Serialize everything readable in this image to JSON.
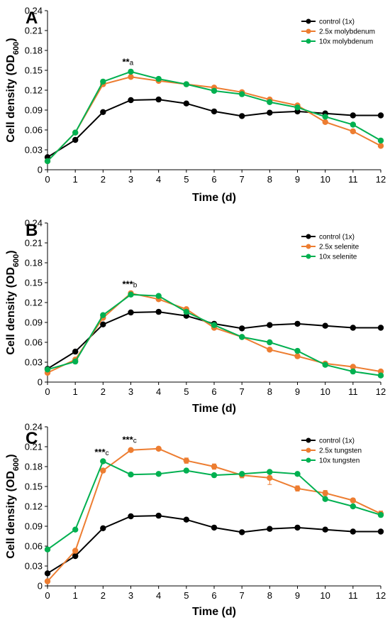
{
  "chart_data": [
    {
      "type": "line",
      "panel_label": "A",
      "xlabel": "Time (d)",
      "ylabel_main": "Cell density (OD",
      "ylabel_sub": "600",
      "ylabel_close": ")",
      "x": [
        0,
        1,
        2,
        3,
        4,
        5,
        6,
        7,
        8,
        9,
        10,
        11,
        12
      ],
      "xlim": [
        0,
        12
      ],
      "ylim": [
        0,
        0.24
      ],
      "yticks": [
        "0",
        "0.03",
        "0.06",
        "0.09",
        "0.12",
        "0.15",
        "0.18",
        "0.21",
        "0.24"
      ],
      "grid": false,
      "legend_position": "top-right",
      "series": [
        {
          "name": "control (1x)",
          "color": "#000000",
          "values": [
            0.019,
            0.045,
            0.087,
            0.105,
            0.106,
            0.1,
            0.088,
            0.081,
            0.086,
            0.088,
            0.085,
            0.082,
            0.082
          ],
          "errors": []
        },
        {
          "name": "2.5x molybdenum",
          "color": "#ED7D31",
          "values": [
            0.013,
            0.056,
            0.129,
            0.14,
            0.134,
            0.129,
            0.124,
            0.117,
            0.106,
            0.097,
            0.072,
            0.058,
            0.036
          ],
          "errors": []
        },
        {
          "name": "10x molybdenum",
          "color": "#00B050",
          "values": [
            0.013,
            0.056,
            0.133,
            0.148,
            0.137,
            0.129,
            0.119,
            0.114,
            0.102,
            0.094,
            0.08,
            0.068,
            0.044
          ],
          "errors": []
        }
      ],
      "annotations": [
        {
          "stars": "**",
          "letter": "a",
          "x": 3,
          "y": 0.158
        }
      ]
    },
    {
      "type": "line",
      "panel_label": "B",
      "xlabel": "Time (d)",
      "ylabel_main": "Cell density (OD",
      "ylabel_sub": "600",
      "ylabel_close": ")",
      "x": [
        0,
        1,
        2,
        3,
        4,
        5,
        6,
        7,
        8,
        9,
        10,
        11,
        12
      ],
      "xlim": [
        0,
        12
      ],
      "ylim": [
        0,
        0.24
      ],
      "yticks": [
        "0",
        "0.03",
        "0.06",
        "0.09",
        "0.12",
        "0.15",
        "0.18",
        "0.21",
        "0.24"
      ],
      "grid": false,
      "legend_position": "top-right",
      "series": [
        {
          "name": "control (1x)",
          "color": "#000000",
          "values": [
            0.02,
            0.046,
            0.087,
            0.105,
            0.106,
            0.1,
            0.088,
            0.081,
            0.086,
            0.088,
            0.085,
            0.082,
            0.082
          ],
          "errors": []
        },
        {
          "name": "2.5x selenite",
          "color": "#ED7D31",
          "values": [
            0.014,
            0.034,
            0.097,
            0.134,
            0.125,
            0.11,
            0.082,
            0.068,
            0.049,
            0.039,
            0.028,
            0.023,
            0.016
          ],
          "errors": []
        },
        {
          "name": "10x selenite",
          "color": "#00B050",
          "values": [
            0.019,
            0.031,
            0.101,
            0.132,
            0.13,
            0.106,
            0.086,
            0.068,
            0.06,
            0.047,
            0.026,
            0.016,
            0.01
          ],
          "errors": []
        }
      ],
      "annotations": [
        {
          "stars": "***",
          "letter": "b",
          "x": 3,
          "y": 0.143
        }
      ]
    },
    {
      "type": "line",
      "panel_label": "C",
      "xlabel": "Time (d)",
      "ylabel_main": "Cell density (OD",
      "ylabel_sub": "600",
      "ylabel_close": ")",
      "x": [
        0,
        1,
        2,
        3,
        4,
        5,
        6,
        7,
        8,
        9,
        10,
        11,
        12
      ],
      "xlim": [
        0,
        12
      ],
      "ylim": [
        0,
        0.24
      ],
      "yticks": [
        "0",
        "0.03",
        "0.06",
        "0.09",
        "0.12",
        "0.15",
        "0.18",
        "0.21",
        "0.24"
      ],
      "grid": false,
      "legend_position": "top-right",
      "series": [
        {
          "name": "control (1x)",
          "color": "#000000",
          "values": [
            0.019,
            0.045,
            0.087,
            0.105,
            0.106,
            0.1,
            0.088,
            0.081,
            0.086,
            0.088,
            0.085,
            0.082,
            0.082
          ],
          "errors": []
        },
        {
          "name": "2.5x tungsten",
          "color": "#ED7D31",
          "values": [
            0.007,
            0.053,
            0.174,
            0.205,
            0.207,
            0.189,
            0.18,
            0.167,
            0.163,
            0.147,
            0.14,
            0.129,
            0.109
          ],
          "errors": [
            0,
            0,
            0,
            0,
            0,
            0.004,
            0.004,
            0.004,
            0.01,
            0.004,
            0.004,
            0.003,
            0.004
          ]
        },
        {
          "name": "10x tungsten",
          "color": "#00B050",
          "values": [
            0.055,
            0.085,
            0.188,
            0.168,
            0.169,
            0.174,
            0.167,
            0.169,
            0.172,
            0.169,
            0.131,
            0.12,
            0.107
          ],
          "errors": []
        }
      ],
      "annotations": [
        {
          "stars": "***",
          "letter": "c",
          "x": 2,
          "y": 0.197
        },
        {
          "stars": "***",
          "letter": "c",
          "x": 3,
          "y": 0.216
        }
      ]
    }
  ]
}
